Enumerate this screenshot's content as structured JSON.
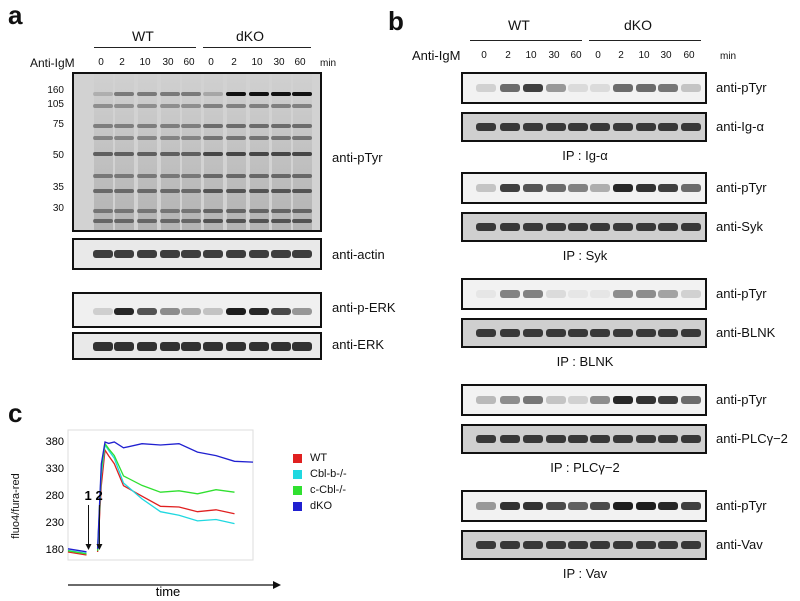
{
  "panels": {
    "a": "a",
    "b": "b",
    "c": "c"
  },
  "panel_a": {
    "groups": [
      "WT",
      "dKO"
    ],
    "treatment_label": "Anti-IgM",
    "timepoints": [
      "0",
      "2",
      "10",
      "30",
      "60",
      "0",
      "2",
      "10",
      "30",
      "60"
    ],
    "unit": "min",
    "mw_markers": [
      "160",
      "105",
      "75",
      "50",
      "35",
      "30"
    ],
    "blots": [
      "anti-pTyr",
      "anti-actin",
      "anti-p-ERK",
      "anti-ERK"
    ]
  },
  "panel_b": {
    "groups": [
      "WT",
      "dKO"
    ],
    "treatment_label": "Anti-IgM",
    "timepoints": [
      "0",
      "2",
      "10",
      "30",
      "60",
      "0",
      "2",
      "10",
      "30",
      "60"
    ],
    "unit": "min",
    "sets": [
      {
        "top": "anti-pTyr",
        "bottom": "anti-Ig-α",
        "ip": "IP : Ig-α"
      },
      {
        "top": "anti-pTyr",
        "bottom": "anti-Syk",
        "ip": "IP : Syk"
      },
      {
        "top": "anti-pTyr",
        "bottom": "anti-BLNK",
        "ip": "IP : BLNK"
      },
      {
        "top": "anti-pTyr",
        "bottom": "anti-PLCγ−2",
        "ip": "IP : PLCγ−2"
      },
      {
        "top": "anti-pTyr",
        "bottom": "anti-Vav",
        "ip": "IP : Vav"
      }
    ]
  },
  "panel_c": {
    "ylabel": "fluo4/fura-red",
    "xlabel": "time",
    "markers": [
      "1",
      "2"
    ],
    "legend": [
      {
        "name": "WT",
        "color": "#e02020"
      },
      {
        "name": "Cbl-b-/-",
        "color": "#20d8e0"
      },
      {
        "name": "c-Cbl-/-",
        "color": "#30e030"
      },
      {
        "name": "dKO",
        "color": "#2020d0"
      }
    ]
  },
  "chart_data": {
    "type": "line",
    "xlabel": "time",
    "ylabel": "fluo4/fura-red",
    "yticks": [
      180,
      230,
      280,
      330,
      380
    ],
    "ylim": [
      160,
      400
    ],
    "xlim": [
      0,
      100
    ],
    "series": [
      {
        "name": "WT",
        "color": "#e02020",
        "x": [
          0,
          10,
          11,
          14,
          16,
          18,
          20,
          22,
          25,
          30,
          40,
          50,
          60,
          70,
          80,
          90
        ],
        "y": [
          172,
          172,
          172,
          172,
          172,
          300,
          360,
          355,
          335,
          300,
          275,
          262,
          255,
          252,
          250,
          248
        ]
      },
      {
        "name": "Cbl-b-/-",
        "color": "#20d8e0",
        "x": [
          0,
          10,
          11,
          14,
          16,
          18,
          20,
          22,
          25,
          30,
          40,
          50,
          60,
          70,
          80,
          90
        ],
        "y": [
          175,
          175,
          175,
          175,
          175,
          320,
          370,
          365,
          345,
          305,
          270,
          252,
          240,
          235,
          232,
          230
        ]
      },
      {
        "name": "c-Cbl-/-",
        "color": "#30e030",
        "x": [
          0,
          10,
          11,
          14,
          16,
          18,
          20,
          22,
          25,
          30,
          40,
          50,
          60,
          70,
          80,
          90
        ],
        "y": [
          174,
          174,
          174,
          174,
          174,
          330,
          372,
          368,
          350,
          318,
          295,
          288,
          285,
          285,
          287,
          288
        ]
      },
      {
        "name": "dKO",
        "color": "#2020d0",
        "x": [
          0,
          10,
          11,
          14,
          16,
          18,
          20,
          22,
          25,
          30,
          40,
          50,
          60,
          70,
          80,
          90,
          100
        ],
        "y": [
          178,
          178,
          178,
          178,
          178,
          340,
          375,
          378,
          375,
          370,
          372,
          375,
          372,
          362,
          350,
          345,
          338
        ]
      }
    ]
  }
}
